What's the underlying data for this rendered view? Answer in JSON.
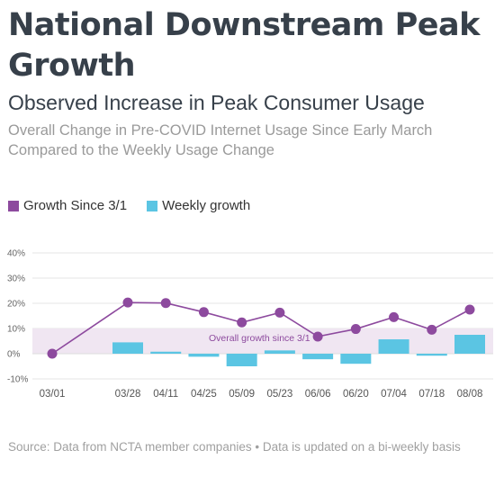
{
  "header": {
    "title": "National Downstream Peak Growth",
    "subtitle": "Observed Increase in Peak Consumer Usage",
    "description": "Overall Change in Pre-COVID Internet Usage Since Early March Compared to the Weekly Usage Change"
  },
  "footer": {
    "source": "Source: Data from NCTA member companies • Data is updated on a bi-weekly basis"
  },
  "colors": {
    "line": "#8d4a9e",
    "bar": "#5bc5e3",
    "band": "#f0e6f2",
    "band_label": "#8d4a9e",
    "grid": "#e6e6e6",
    "axis_text": "#666666"
  },
  "chart_data": {
    "type": "bar",
    "categories": [
      "03/01",
      "03/28",
      "04/11",
      "04/25",
      "05/09",
      "05/23",
      "06/06",
      "06/20",
      "07/04",
      "07/18",
      "08/08"
    ],
    "series": [
      {
        "name": "Growth Since 3/1",
        "type": "line",
        "values": [
          0,
          20.3,
          20.1,
          16.5,
          12.4,
          16.3,
          6.8,
          9.8,
          14.5,
          9.5,
          17.5
        ]
      },
      {
        "name": "Weekly growth",
        "type": "bar",
        "values": [
          null,
          4.5,
          0.8,
          -1.2,
          -5.0,
          1.3,
          -2.2,
          -4.0,
          5.7,
          -0.8,
          7.5
        ]
      }
    ],
    "yticks": [
      "-10%",
      "0%",
      "10%",
      "20%",
      "30%",
      "40%"
    ],
    "ylim": [
      -10,
      40
    ],
    "band": {
      "from": 0,
      "to": 10,
      "label": "Overall growth since 3/1"
    },
    "grid": true,
    "legend": "top-left"
  }
}
